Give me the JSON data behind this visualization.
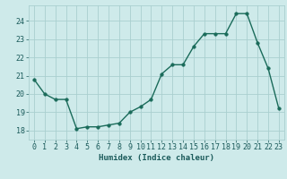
{
  "x": [
    0,
    1,
    2,
    3,
    4,
    5,
    6,
    7,
    8,
    9,
    10,
    11,
    12,
    13,
    14,
    15,
    16,
    17,
    18,
    19,
    20,
    21,
    22,
    23
  ],
  "y": [
    20.8,
    20.0,
    19.7,
    19.7,
    18.1,
    18.2,
    18.2,
    18.3,
    18.4,
    19.0,
    19.3,
    19.7,
    21.1,
    21.6,
    21.6,
    22.6,
    23.3,
    23.3,
    23.3,
    24.4,
    24.4,
    22.8,
    21.4,
    19.2
  ],
  "xlabel": "Humidex (Indice chaleur)",
  "xlim": [
    -0.5,
    23.5
  ],
  "ylim": [
    17.5,
    24.85
  ],
  "yticks": [
    18,
    19,
    20,
    21,
    22,
    23,
    24
  ],
  "xticks": [
    0,
    1,
    2,
    3,
    4,
    5,
    6,
    7,
    8,
    9,
    10,
    11,
    12,
    13,
    14,
    15,
    16,
    17,
    18,
    19,
    20,
    21,
    22,
    23
  ],
  "line_color": "#1a6b5a",
  "marker_size": 2.5,
  "bg_color": "#ceeaea",
  "grid_color": "#aacfcf",
  "font_color": "#1a5a5a",
  "xlabel_fontsize": 6.5,
  "tick_fontsize": 6.0,
  "line_width": 1.0
}
